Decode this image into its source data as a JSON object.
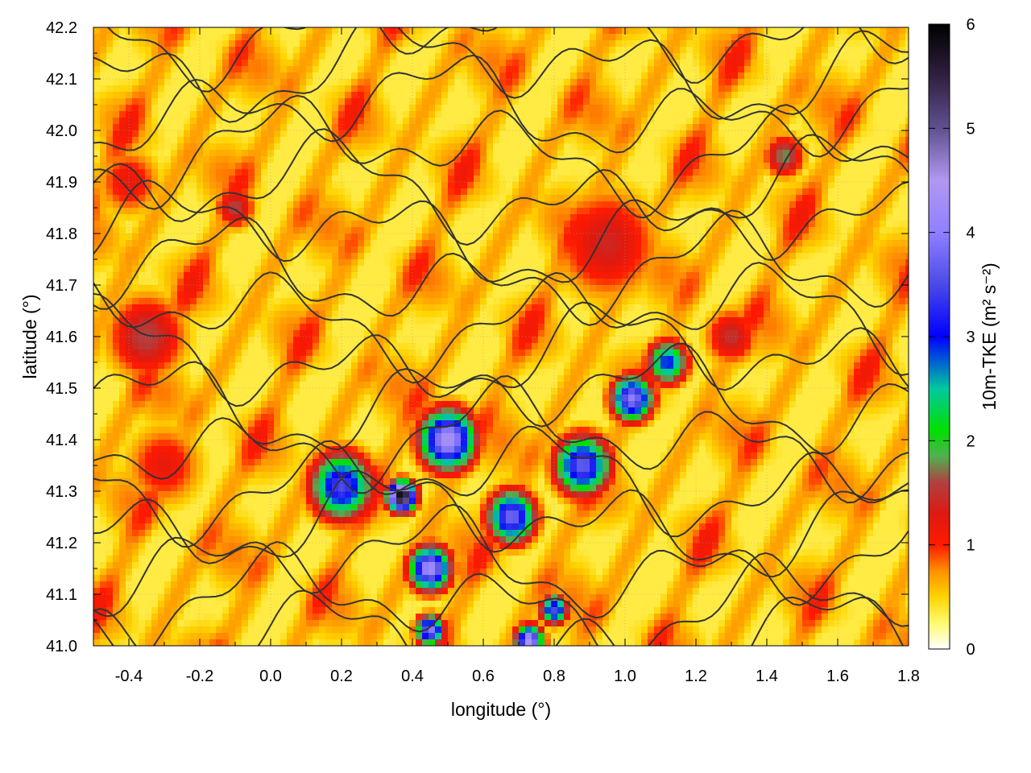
{
  "chart_data": {
    "type": "heatmap",
    "title": "",
    "xlabel": "longitude (°)",
    "ylabel": "latitude (°)",
    "colorbar_label": "10m-TKE (m² s⁻²)",
    "xlim": [
      -0.5,
      1.8
    ],
    "ylim": [
      41.0,
      42.2
    ],
    "x_ticks": [
      {
        "value": -0.4,
        "label": "-0.4"
      },
      {
        "value": -0.2,
        "label": "-0.2"
      },
      {
        "value": 0.0,
        "label": "0.0"
      },
      {
        "value": 0.2,
        "label": "0.2"
      },
      {
        "value": 0.4,
        "label": "0.4"
      },
      {
        "value": 0.6,
        "label": "0.6"
      },
      {
        "value": 0.8,
        "label": "0.8"
      },
      {
        "value": 1.0,
        "label": "1.0"
      },
      {
        "value": 1.2,
        "label": "1.2"
      },
      {
        "value": 1.4,
        "label": "1.4"
      },
      {
        "value": 1.6,
        "label": "1.6"
      },
      {
        "value": 1.8,
        "label": "1.8"
      }
    ],
    "y_ticks": [
      {
        "value": 41.0,
        "label": "41.0"
      },
      {
        "value": 41.1,
        "label": "41.1"
      },
      {
        "value": 41.2,
        "label": "41.2"
      },
      {
        "value": 41.3,
        "label": "41.3"
      },
      {
        "value": 41.4,
        "label": "41.4"
      },
      {
        "value": 41.5,
        "label": "41.5"
      },
      {
        "value": 41.6,
        "label": "41.6"
      },
      {
        "value": 41.7,
        "label": "41.7"
      },
      {
        "value": 41.8,
        "label": "41.8"
      },
      {
        "value": 41.9,
        "label": "41.9"
      },
      {
        "value": 42.0,
        "label": "42.0"
      },
      {
        "value": 42.1,
        "label": "42.1"
      },
      {
        "value": 42.2,
        "label": "42.2"
      }
    ],
    "colorbar": {
      "range": [
        0,
        6
      ],
      "ticks": [
        {
          "value": 0,
          "label": "0"
        },
        {
          "value": 1,
          "label": "1"
        },
        {
          "value": 2,
          "label": "2"
        },
        {
          "value": 3,
          "label": "3"
        },
        {
          "value": 4,
          "label": "4"
        },
        {
          "value": 5,
          "label": "5"
        },
        {
          "value": 6,
          "label": "6"
        }
      ],
      "stops": [
        {
          "value": 0.0,
          "color": "#ffffff"
        },
        {
          "value": 0.25,
          "color": "#fffa70"
        },
        {
          "value": 0.5,
          "color": "#ffd400"
        },
        {
          "value": 0.75,
          "color": "#ff9000"
        },
        {
          "value": 1.0,
          "color": "#ff1a00"
        },
        {
          "value": 1.3,
          "color": "#dd1a10"
        },
        {
          "value": 1.6,
          "color": "#b04040"
        },
        {
          "value": 1.85,
          "color": "#50b050"
        },
        {
          "value": 2.1,
          "color": "#00e000"
        },
        {
          "value": 2.5,
          "color": "#00c8a0"
        },
        {
          "value": 3.0,
          "color": "#0000ff"
        },
        {
          "value": 3.5,
          "color": "#4a4ae8"
        },
        {
          "value": 4.0,
          "color": "#9080ff"
        },
        {
          "value": 4.5,
          "color": "#b098f0"
        },
        {
          "value": 5.0,
          "color": "#605090"
        },
        {
          "value": 5.5,
          "color": "#302040"
        },
        {
          "value": 6.0,
          "color": "#000000"
        }
      ]
    },
    "grid": true,
    "contours": "terrain elevation contours (black lines)",
    "tke_field": {
      "background": 0.35,
      "features": [
        {
          "lon": 0.37,
          "lat": 41.29,
          "peak": 6.0,
          "size": 0.04,
          "note": "maximum"
        },
        {
          "lon": 0.5,
          "lat": 41.4,
          "peak": 4.4,
          "size": 0.08
        },
        {
          "lon": 0.2,
          "lat": 41.31,
          "peak": 3.5,
          "size": 0.09
        },
        {
          "lon": 0.45,
          "lat": 41.15,
          "peak": 4.3,
          "size": 0.06
        },
        {
          "lon": 0.68,
          "lat": 41.25,
          "peak": 3.8,
          "size": 0.07
        },
        {
          "lon": 1.02,
          "lat": 41.48,
          "peak": 4.0,
          "size": 0.06
        },
        {
          "lon": 0.88,
          "lat": 41.35,
          "peak": 3.7,
          "size": 0.08
        },
        {
          "lon": 1.12,
          "lat": 41.55,
          "peak": 3.0,
          "size": 0.06
        },
        {
          "lon": 0.45,
          "lat": 41.03,
          "peak": 4.0,
          "size": 0.04
        },
        {
          "lon": 0.73,
          "lat": 41.01,
          "peak": 4.5,
          "size": 0.04
        },
        {
          "lon": 0.8,
          "lat": 41.07,
          "peak": 3.5,
          "size": 0.04
        },
        {
          "lon": 1.45,
          "lat": 41.95,
          "peak": 1.8,
          "size": 0.06
        },
        {
          "lon": 0.95,
          "lat": 41.78,
          "peak": 1.4,
          "size": 0.16
        },
        {
          "lon": -0.35,
          "lat": 41.6,
          "peak": 1.6,
          "size": 0.12
        },
        {
          "lon": -0.3,
          "lat": 41.35,
          "peak": 1.2,
          "size": 0.12
        },
        {
          "lon": -0.1,
          "lat": 41.85,
          "peak": 1.6,
          "size": 0.06
        },
        {
          "lon": 1.3,
          "lat": 41.6,
          "peak": 1.5,
          "size": 0.08
        },
        {
          "lon": -0.4,
          "lat": 41.9,
          "peak": 1.2,
          "size": 0.1
        }
      ]
    }
  }
}
